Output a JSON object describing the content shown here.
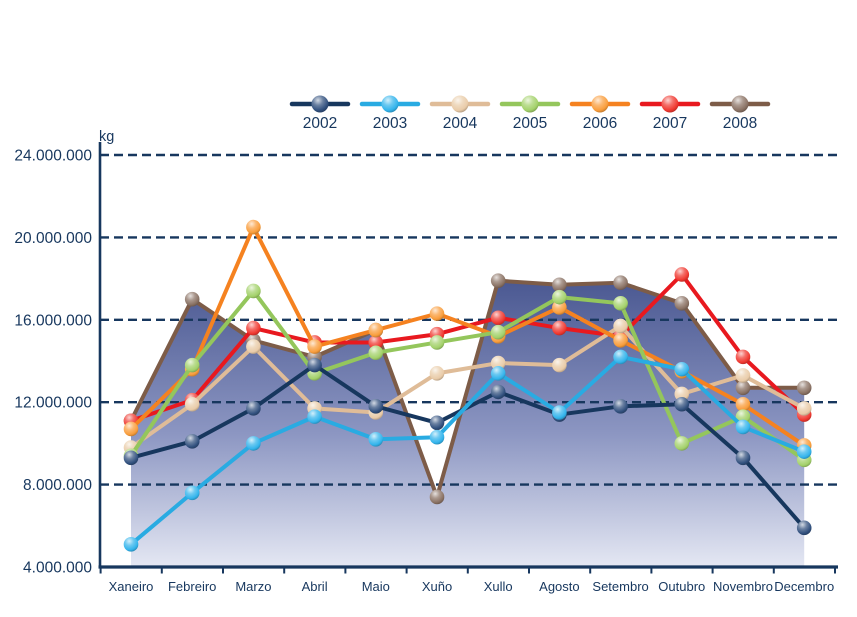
{
  "chart_data": {
    "type": "line",
    "title": "",
    "unit_label": "kg",
    "categories": [
      "Xaneiro",
      "Febreiro",
      "Marzo",
      "Abril",
      "Maio",
      "Xuño",
      "Xullo",
      "Agosto",
      "Setembro",
      "Outubro",
      "Novembro",
      "Decembro"
    ],
    "xlabel": "",
    "ylabel": "kg",
    "ylim": [
      4000000,
      24000000
    ],
    "y_ticks": [
      24000000,
      20000000,
      16000000,
      12000000,
      8000000,
      4000000
    ],
    "y_tick_labels": [
      "24.000.000",
      "20.000.000",
      "16.000.000",
      "12.000.000",
      "8.000.000",
      "4.000.000"
    ],
    "grid": "horizontal-dashed",
    "grid_color": "#17375E",
    "text_color": "#17375E",
    "legend_position": "top",
    "legend_order": [
      "2002",
      "2003",
      "2004",
      "2005",
      "2006",
      "2007",
      "2008"
    ],
    "area_fill_series": "2008",
    "area_gradient_top": "#47558F",
    "area_gradient_mid": "#8C96C2",
    "area_gradient_bottom": "#E4E7F3",
    "draw_order": [
      "2008",
      "2007",
      "2004",
      "2006",
      "2005",
      "2002",
      "2003"
    ],
    "series": [
      {
        "name": "2002",
        "line_color": "#17375E",
        "marker_color": "#31507E",
        "values": [
          9300000,
          10100000,
          11700000,
          13800000,
          11800000,
          11000000,
          12500000,
          11400000,
          11800000,
          11900000,
          9300000,
          5900000
        ]
      },
      {
        "name": "2003",
        "line_color": "#29ABE2",
        "marker_color": "#33B4EC",
        "values": [
          5100000,
          7600000,
          10000000,
          11300000,
          10200000,
          10300000,
          13400000,
          11500000,
          14200000,
          13600000,
          10800000,
          9600000
        ]
      },
      {
        "name": "2004",
        "line_color": "#DFBC98",
        "marker_color": "#E9CBA8",
        "values": [
          9800000,
          11900000,
          14700000,
          11700000,
          11500000,
          13400000,
          13900000,
          13800000,
          15700000,
          12400000,
          13300000,
          11700000
        ]
      },
      {
        "name": "2005",
        "line_color": "#94C65C",
        "marker_color": "#A3D16A",
        "values": [
          9400000,
          13800000,
          17400000,
          13400000,
          14400000,
          14900000,
          15400000,
          17100000,
          16800000,
          10000000,
          11300000,
          9200000
        ]
      },
      {
        "name": "2006",
        "line_color": "#F58220",
        "marker_color": "#F99D3B",
        "values": [
          10700000,
          13600000,
          20500000,
          14700000,
          15500000,
          16300000,
          15200000,
          16600000,
          15000000,
          13500000,
          11900000,
          9900000
        ]
      },
      {
        "name": "2007",
        "line_color": "#E8191F",
        "marker_color": "#F03830",
        "values": [
          11100000,
          12100000,
          15600000,
          14900000,
          14900000,
          15300000,
          16100000,
          15600000,
          15200000,
          18200000,
          14200000,
          11400000
        ]
      },
      {
        "name": "2008",
        "line_color": "#7D5C48",
        "marker_color": "#8A7264",
        "values": [
          11100000,
          17000000,
          15000000,
          14200000,
          15500000,
          7400000,
          17900000,
          17700000,
          17800000,
          16800000,
          12700000,
          12700000
        ]
      }
    ]
  }
}
